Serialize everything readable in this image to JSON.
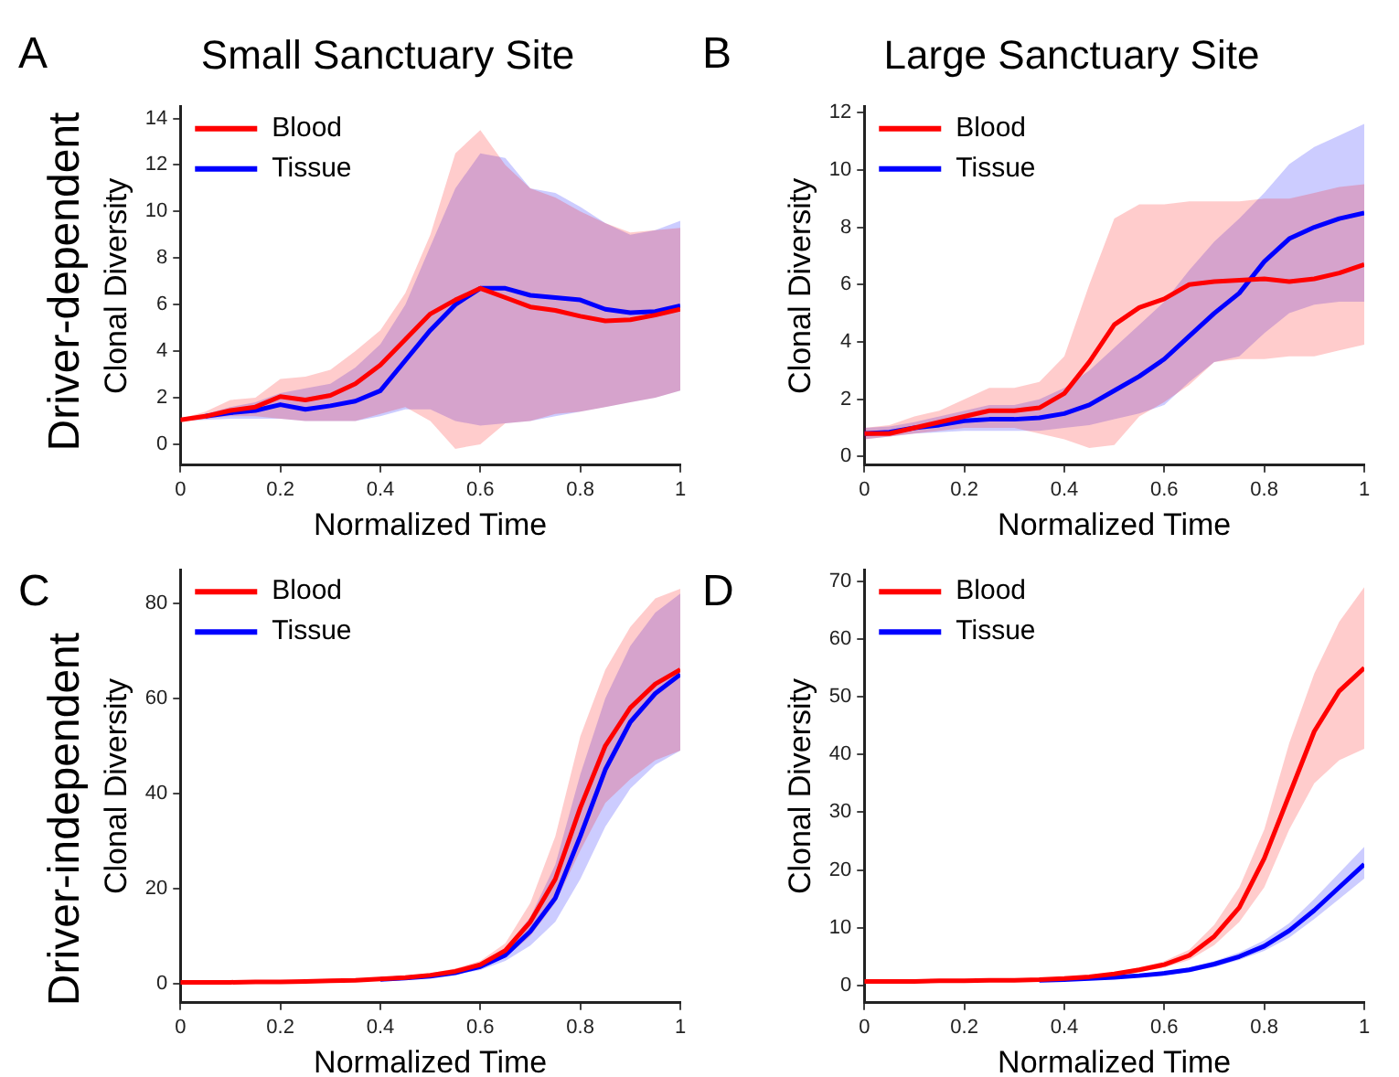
{
  "chart_data": [
    {
      "type": "line",
      "title": "Small Sanctuary Site",
      "xlabel": "Normalized Time",
      "ylabel": "Clonal Diversity",
      "annotations": [
        "A",
        "Driver-dependent"
      ],
      "x": [
        0,
        0.05,
        0.1,
        0.15,
        0.2,
        0.25,
        0.3,
        0.35,
        0.4,
        0.45,
        0.5,
        0.55,
        0.6,
        0.65,
        0.7,
        0.75,
        0.8,
        0.85,
        0.9,
        0.95,
        1
      ],
      "xlim": [
        0,
        1
      ],
      "xticks": [
        0,
        0.2,
        0.4,
        0.6,
        0.8,
        1
      ],
      "ylim": [
        -0.9,
        14.5
      ],
      "yticks": [
        0,
        2,
        4,
        6,
        8,
        10,
        12,
        14
      ],
      "legend": "top left",
      "grid": false,
      "marker": "none",
      "line_style": "solid",
      "series": [
        {
          "name": "Blood",
          "color": "#ff0000",
          "values": [
            1.05,
            1.2,
            1.45,
            1.6,
            2.05,
            1.9,
            2.1,
            2.6,
            3.4,
            4.5,
            5.6,
            6.2,
            6.7,
            6.3,
            5.9,
            5.75,
            5.5,
            5.3,
            5.35,
            5.55,
            5.8
          ],
          "lower": [
            1.0,
            1.1,
            1.2,
            1.2,
            1.1,
            1.0,
            1.0,
            1.0,
            1.3,
            1.6,
            1.0,
            -0.2,
            0,
            0.9,
            1.0,
            1.3,
            1.4,
            1.6,
            1.8,
            2.0,
            2.3
          ],
          "upper": [
            1.1,
            1.4,
            1.9,
            2.0,
            2.8,
            2.9,
            3.2,
            4.0,
            4.9,
            6.5,
            9.0,
            12.5,
            13.5,
            12.0,
            11.0,
            10.6,
            10.0,
            9.5,
            9.1,
            9.2,
            9.3
          ]
        },
        {
          "name": "Tissue",
          "color": "#0000ff",
          "values": [
            null,
            1.2,
            1.35,
            1.45,
            1.7,
            1.5,
            1.65,
            1.85,
            2.3,
            3.6,
            4.9,
            6.0,
            6.7,
            6.7,
            6.4,
            6.3,
            6.2,
            5.8,
            5.65,
            5.7,
            5.95
          ],
          "lower": [
            1.0,
            1.05,
            1.1,
            1.1,
            1.1,
            1.0,
            1.0,
            1.0,
            1.2,
            1.5,
            1.5,
            1.0,
            0.8,
            0.9,
            1.0,
            1.2,
            1.4,
            1.6,
            1.8,
            2.0,
            2.3
          ],
          "upper": [
            1.1,
            1.3,
            1.6,
            1.8,
            2.2,
            2.4,
            2.6,
            3.3,
            4.3,
            6.0,
            8.5,
            11.0,
            12.5,
            12.3,
            11.0,
            10.8,
            10.2,
            9.5,
            9.0,
            9.2,
            9.6
          ]
        }
      ]
    },
    {
      "type": "line",
      "title": "Large Sanctuary Site",
      "xlabel": "Normalized Time",
      "ylabel": "Clonal Diversity",
      "annotations": [
        "B"
      ],
      "x": [
        0,
        0.05,
        0.1,
        0.15,
        0.2,
        0.25,
        0.3,
        0.35,
        0.4,
        0.45,
        0.5,
        0.55,
        0.6,
        0.65,
        0.7,
        0.75,
        0.8,
        0.85,
        0.9,
        0.95,
        1
      ],
      "xlim": [
        0,
        1
      ],
      "xticks": [
        0,
        0.2,
        0.4,
        0.6,
        0.8,
        1
      ],
      "ylim": [
        -0.3,
        12.2
      ],
      "yticks": [
        0,
        2,
        4,
        6,
        8,
        10,
        12
      ],
      "legend": "top left",
      "grid": false,
      "marker": "none",
      "line_style": "solid",
      "series": [
        {
          "name": "Blood",
          "color": "#ff0000",
          "values": [
            0.8,
            0.8,
            1.0,
            1.2,
            1.4,
            1.6,
            1.6,
            1.7,
            2.2,
            3.3,
            4.6,
            5.2,
            5.5,
            6.0,
            6.1,
            6.15,
            6.2,
            6.1,
            6.2,
            6.4,
            6.7
          ],
          "lower": [
            0.6,
            0.7,
            0.8,
            0.9,
            1.0,
            1.0,
            1.0,
            0.8,
            0.6,
            0.3,
            0.4,
            1.4,
            1.9,
            2.5,
            3.3,
            3.4,
            3.4,
            3.5,
            3.5,
            3.7,
            3.9
          ],
          "upper": [
            1.0,
            1.1,
            1.4,
            1.6,
            2.0,
            2.4,
            2.4,
            2.6,
            3.5,
            6.0,
            8.3,
            8.8,
            8.8,
            8.9,
            8.9,
            8.9,
            9.0,
            9.0,
            9.2,
            9.4,
            9.5
          ]
        },
        {
          "name": "Tissue",
          "color": "#0000ff",
          "values": [
            0.8,
            0.85,
            1.0,
            1.1,
            1.25,
            1.3,
            1.3,
            1.35,
            1.5,
            1.8,
            2.3,
            2.8,
            3.4,
            4.2,
            5.0,
            5.7,
            6.8,
            7.6,
            8.0,
            8.3,
            8.5
          ],
          "lower": [
            0.6,
            0.7,
            0.8,
            0.85,
            0.9,
            0.9,
            0.9,
            0.9,
            1.0,
            1.1,
            1.3,
            1.5,
            1.8,
            2.6,
            3.3,
            3.5,
            4.3,
            5.0,
            5.3,
            5.4,
            5.4
          ],
          "upper": [
            1.0,
            1.05,
            1.2,
            1.4,
            1.6,
            1.8,
            1.8,
            2.0,
            2.4,
            3.0,
            3.8,
            4.6,
            5.4,
            6.5,
            7.5,
            8.3,
            9.2,
            10.2,
            10.8,
            11.2,
            11.6
          ]
        }
      ]
    },
    {
      "type": "line",
      "xlabel": "Normalized Time",
      "ylabel": "Clonal Diversity",
      "annotations": [
        "C",
        "Driver-independent"
      ],
      "x": [
        0,
        0.05,
        0.1,
        0.15,
        0.2,
        0.25,
        0.3,
        0.35,
        0.4,
        0.45,
        0.5,
        0.55,
        0.6,
        0.65,
        0.7,
        0.75,
        0.8,
        0.85,
        0.9,
        0.95,
        1
      ],
      "xlim": [
        0,
        1
      ],
      "xticks": [
        0,
        0.2,
        0.4,
        0.6,
        0.8,
        1
      ],
      "ylim": [
        -4,
        87
      ],
      "yticks": [
        0,
        20,
        40,
        60,
        80
      ],
      "legend": "top left",
      "grid": false,
      "marker": "none",
      "line_style": "solid",
      "series": [
        {
          "name": "Blood",
          "color": "#ff0000",
          "values": [
            0.3,
            0.3,
            0.3,
            0.4,
            0.4,
            0.5,
            0.6,
            0.7,
            1.0,
            1.3,
            1.8,
            2.6,
            4,
            7,
            13,
            22,
            37,
            50,
            58,
            63,
            66
          ],
          "lower": [
            0.2,
            0.2,
            0.2,
            0.3,
            0.3,
            0.4,
            0.5,
            0.6,
            0.8,
            1.1,
            1.5,
            2.1,
            3.2,
            5.5,
            10,
            17,
            28,
            38,
            43,
            47,
            49
          ],
          "upper": [
            0.4,
            0.4,
            0.4,
            0.5,
            0.5,
            0.6,
            0.7,
            0.9,
            1.2,
            1.6,
            2.2,
            3.2,
            4.8,
            8.5,
            17,
            31,
            52,
            66,
            75,
            81,
            83
          ]
        },
        {
          "name": "Tissue",
          "color": "#0000ff",
          "values": [
            null,
            null,
            null,
            null,
            null,
            null,
            null,
            null,
            0.9,
            1.2,
            1.6,
            2.3,
            3.6,
            6,
            11,
            18,
            31,
            45,
            55,
            61,
            65
          ],
          "lower": [
            0.2,
            0.2,
            0.2,
            0.3,
            0.3,
            0.4,
            0.5,
            0.6,
            0.7,
            1.0,
            1.3,
            1.9,
            2.9,
            4.8,
            8,
            13,
            22,
            33,
            41,
            46,
            49
          ],
          "upper": [
            0.4,
            0.4,
            0.4,
            0.5,
            0.5,
            0.6,
            0.7,
            0.8,
            1.1,
            1.4,
            1.9,
            2.8,
            4.4,
            7.5,
            14,
            25,
            44,
            60,
            71,
            78,
            82
          ]
        }
      ]
    },
    {
      "type": "line",
      "xlabel": "Normalized Time",
      "ylabel": "Clonal Diversity",
      "annotations": [
        "D"
      ],
      "x": [
        0,
        0.05,
        0.1,
        0.15,
        0.2,
        0.25,
        0.3,
        0.35,
        0.4,
        0.45,
        0.5,
        0.55,
        0.6,
        0.65,
        0.7,
        0.75,
        0.8,
        0.85,
        0.9,
        0.95,
        1
      ],
      "xlim": [
        0,
        1
      ],
      "xticks": [
        0,
        0.2,
        0.4,
        0.6,
        0.8,
        1
      ],
      "ylim": [
        -3,
        72
      ],
      "yticks": [
        0,
        10,
        20,
        30,
        40,
        50,
        60,
        70
      ],
      "legend": "top left",
      "grid": false,
      "marker": "none",
      "line_style": "solid",
      "series": [
        {
          "name": "Blood",
          "color": "#ff0000",
          "values": [
            0.7,
            0.7,
            0.7,
            0.8,
            0.8,
            0.9,
            0.9,
            1.0,
            1.2,
            1.5,
            2.0,
            2.7,
            3.6,
            5.2,
            8.5,
            13.5,
            22,
            33,
            44,
            51,
            55
          ],
          "lower": [
            0.6,
            0.6,
            0.6,
            0.7,
            0.7,
            0.8,
            0.8,
            0.9,
            1.0,
            1.3,
            1.7,
            2.3,
            3.1,
            4.4,
            7,
            11,
            17,
            27,
            35,
            39,
            41
          ],
          "upper": [
            0.8,
            0.8,
            0.8,
            0.9,
            0.9,
            1.0,
            1.0,
            1.1,
            1.4,
            1.7,
            2.3,
            3.1,
            4.2,
            6.2,
            10.5,
            17,
            27,
            42,
            54,
            63,
            69
          ]
        },
        {
          "name": "Tissue",
          "color": "#0000ff",
          "values": [
            null,
            null,
            null,
            null,
            null,
            null,
            null,
            0.9,
            1.0,
            1.2,
            1.4,
            1.7,
            2.1,
            2.7,
            3.7,
            5.0,
            6.8,
            9.5,
            13,
            17,
            21
          ],
          "lower": [
            0.6,
            0.6,
            0.6,
            0.65,
            0.7,
            0.7,
            0.75,
            0.8,
            0.9,
            1.0,
            1.2,
            1.5,
            1.8,
            2.3,
            3.2,
            4.4,
            6,
            8.3,
            11.5,
            15,
            18.5
          ],
          "upper": [
            0.8,
            0.8,
            0.8,
            0.85,
            0.9,
            0.9,
            0.95,
            1.0,
            1.1,
            1.4,
            1.6,
            2.0,
            2.4,
            3.1,
            4.2,
            5.7,
            7.8,
            10.8,
            15,
            19.5,
            24
          ]
        }
      ]
    }
  ]
}
